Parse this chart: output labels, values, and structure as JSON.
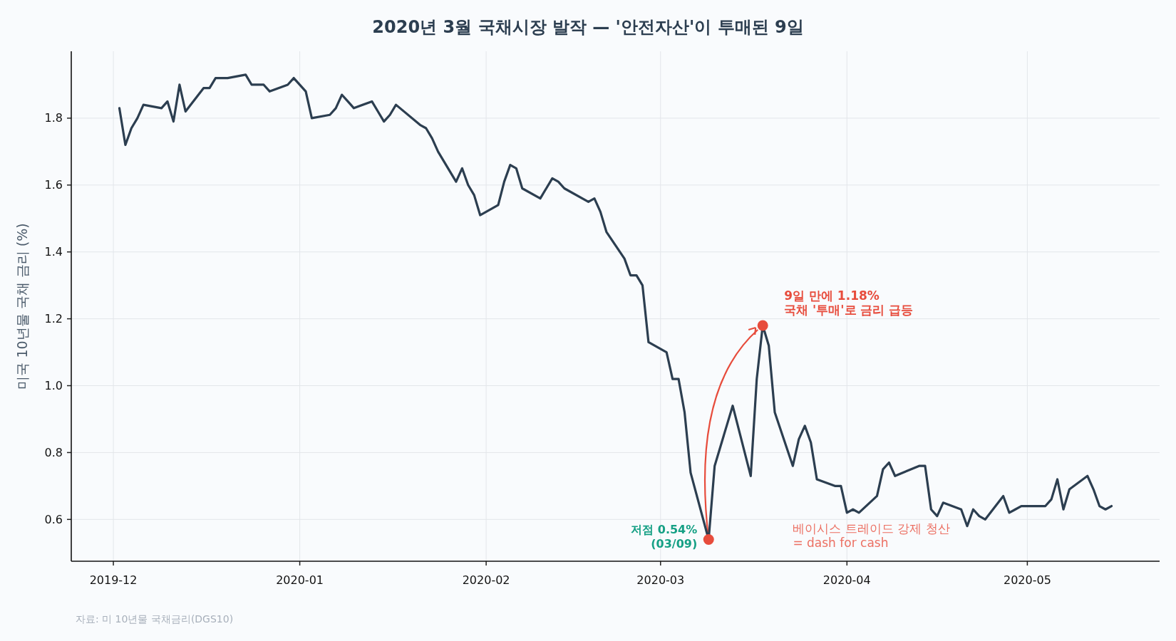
{
  "chart_data": {
    "type": "line",
    "title": "2020년 3월 국채시장 발작 — '안전자산'이 투매된 9일",
    "ylabel": "미국 10년물 국채 금리 (%)",
    "x": [
      "2019-12-02",
      "2019-12-03",
      "2019-12-04",
      "2019-12-05",
      "2019-12-06",
      "2019-12-09",
      "2019-12-10",
      "2019-12-11",
      "2019-12-12",
      "2019-12-13",
      "2019-12-16",
      "2019-12-17",
      "2019-12-18",
      "2019-12-19",
      "2019-12-20",
      "2019-12-23",
      "2019-12-24",
      "2019-12-26",
      "2019-12-27",
      "2019-12-30",
      "2019-12-31",
      "2020-01-02",
      "2020-01-03",
      "2020-01-06",
      "2020-01-07",
      "2020-01-08",
      "2020-01-09",
      "2020-01-10",
      "2020-01-13",
      "2020-01-14",
      "2020-01-15",
      "2020-01-16",
      "2020-01-17",
      "2020-01-21",
      "2020-01-22",
      "2020-01-23",
      "2020-01-24",
      "2020-01-27",
      "2020-01-28",
      "2020-01-29",
      "2020-01-30",
      "2020-01-31",
      "2020-02-03",
      "2020-02-04",
      "2020-02-05",
      "2020-02-06",
      "2020-02-07",
      "2020-02-10",
      "2020-02-11",
      "2020-02-12",
      "2020-02-13",
      "2020-02-14",
      "2020-02-18",
      "2020-02-19",
      "2020-02-20",
      "2020-02-21",
      "2020-02-24",
      "2020-02-25",
      "2020-02-26",
      "2020-02-27",
      "2020-02-28",
      "2020-03-02",
      "2020-03-03",
      "2020-03-04",
      "2020-03-05",
      "2020-03-06",
      "2020-03-09",
      "2020-03-10",
      "2020-03-11",
      "2020-03-12",
      "2020-03-13",
      "2020-03-16",
      "2020-03-17",
      "2020-03-18",
      "2020-03-19",
      "2020-03-20",
      "2020-03-23",
      "2020-03-24",
      "2020-03-25",
      "2020-03-26",
      "2020-03-27",
      "2020-03-30",
      "2020-03-31",
      "2020-04-01",
      "2020-04-02",
      "2020-04-03",
      "2020-04-06",
      "2020-04-07",
      "2020-04-08",
      "2020-04-09",
      "2020-04-13",
      "2020-04-14",
      "2020-04-15",
      "2020-04-16",
      "2020-04-17",
      "2020-04-20",
      "2020-04-21",
      "2020-04-22",
      "2020-04-23",
      "2020-04-24",
      "2020-04-27",
      "2020-04-28",
      "2020-04-29",
      "2020-04-30",
      "2020-05-01",
      "2020-05-04",
      "2020-05-05",
      "2020-05-06",
      "2020-05-07",
      "2020-05-08",
      "2020-05-11",
      "2020-05-12",
      "2020-05-13",
      "2020-05-14",
      "2020-05-15"
    ],
    "series": [
      {
        "color": "#2c3e50",
        "marker": "none",
        "line_style": "solid",
        "values": [
          1.83,
          1.72,
          1.77,
          1.8,
          1.84,
          1.83,
          1.85,
          1.79,
          1.9,
          1.82,
          1.89,
          1.89,
          1.92,
          1.92,
          1.92,
          1.93,
          1.9,
          1.9,
          1.88,
          1.9,
          1.92,
          1.88,
          1.8,
          1.81,
          1.83,
          1.87,
          1.85,
          1.83,
          1.85,
          1.82,
          1.79,
          1.81,
          1.84,
          1.78,
          1.77,
          1.74,
          1.7,
          1.61,
          1.65,
          1.6,
          1.57,
          1.51,
          1.54,
          1.61,
          1.66,
          1.65,
          1.59,
          1.56,
          1.59,
          1.62,
          1.61,
          1.59,
          1.55,
          1.56,
          1.52,
          1.46,
          1.38,
          1.33,
          1.33,
          1.3,
          1.13,
          1.1,
          1.02,
          1.02,
          0.92,
          0.74,
          0.54,
          0.76,
          0.82,
          0.88,
          0.94,
          0.73,
          1.02,
          1.18,
          1.12,
          0.92,
          0.76,
          0.84,
          0.88,
          0.83,
          0.72,
          0.7,
          0.7,
          0.62,
          0.63,
          0.62,
          0.67,
          0.75,
          0.77,
          0.73,
          0.76,
          0.76,
          0.63,
          0.61,
          0.65,
          0.63,
          0.58,
          0.63,
          0.61,
          0.6,
          0.67,
          0.62,
          0.63,
          0.64,
          0.64,
          0.64,
          0.66,
          0.72,
          0.63,
          0.69,
          0.73,
          0.69,
          0.64,
          0.63,
          0.64
        ]
      },
      {
        "type": "scatter",
        "color": "#e74c3c",
        "marker": "circle",
        "x": [
          "2020-03-09",
          "2020-03-18"
        ],
        "values": [
          0.54,
          1.18
        ]
      }
    ],
    "xlim": [
      "2019-11-24",
      "2020-05-23"
    ],
    "xticks": [
      {
        "value": "2019-12-01",
        "label": "2019-12"
      },
      {
        "value": "2020-01-01",
        "label": "2020-01"
      },
      {
        "value": "2020-02-01",
        "label": "2020-02"
      },
      {
        "value": "2020-03-01",
        "label": "2020-03"
      },
      {
        "value": "2020-04-01",
        "label": "2020-04"
      },
      {
        "value": "2020-05-01",
        "label": "2020-05"
      }
    ],
    "ylim": [
      0.475,
      2.0
    ],
    "yticks": [
      {
        "value": 0.6,
        "label": "0.6"
      },
      {
        "value": 0.8,
        "label": "0.8"
      },
      {
        "value": 1.0,
        "label": "1.0"
      },
      {
        "value": 1.2,
        "label": "1.2"
      },
      {
        "value": 1.4,
        "label": "1.4"
      },
      {
        "value": 1.6,
        "label": "1.6"
      },
      {
        "value": 1.8,
        "label": "1.8"
      }
    ],
    "grid": true,
    "annotations": [
      {
        "text": "9일 만에 1.18%\n국채 '투매'로 금리 급등",
        "x": "2020-03-18",
        "y": 1.18
      },
      {
        "text": "저점 0.54%\n(03/09)",
        "x": "2020-03-09",
        "y": 0.54
      },
      "베이시스 트레이드 강제 청산\n= dash for cash",
      "자료: 미 10년물 국채금리(DGS10)"
    ]
  }
}
